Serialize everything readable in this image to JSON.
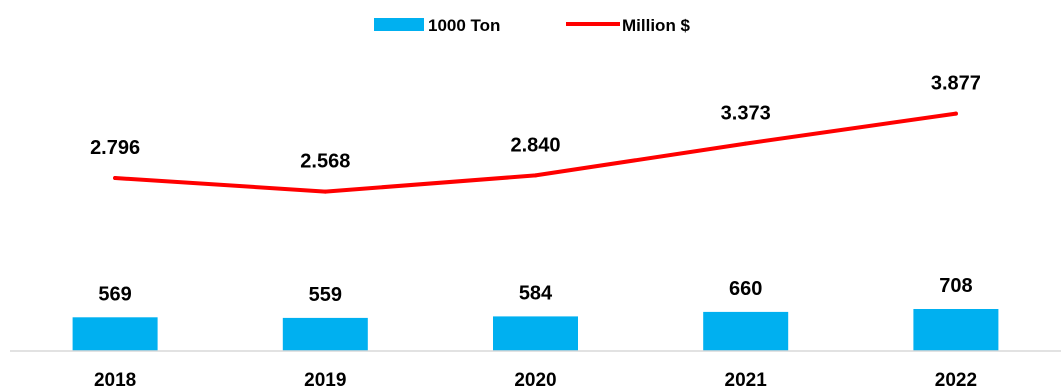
{
  "chart_data": {
    "type": "bar",
    "title": "",
    "xlabel": "",
    "ylabel": "",
    "categories": [
      "2018",
      "2019",
      "2020",
      "2021",
      "2022"
    ],
    "grid": false,
    "legend": "top-center",
    "series": [
      {
        "name": "1000 Ton",
        "type": "bar",
        "color": "#00b0f0",
        "values": [
          569,
          559,
          584,
          660,
          708
        ],
        "labels": [
          "569",
          "559",
          "584",
          "660",
          "708"
        ]
      },
      {
        "name": "Million $",
        "type": "line",
        "color": "#ff0000",
        "values": [
          2.796,
          2.568,
          2.84,
          3.373,
          3.877
        ],
        "labels": [
          "2.796",
          "2.568",
          "2.840",
          "3.373",
          "3.877"
        ]
      }
    ]
  }
}
